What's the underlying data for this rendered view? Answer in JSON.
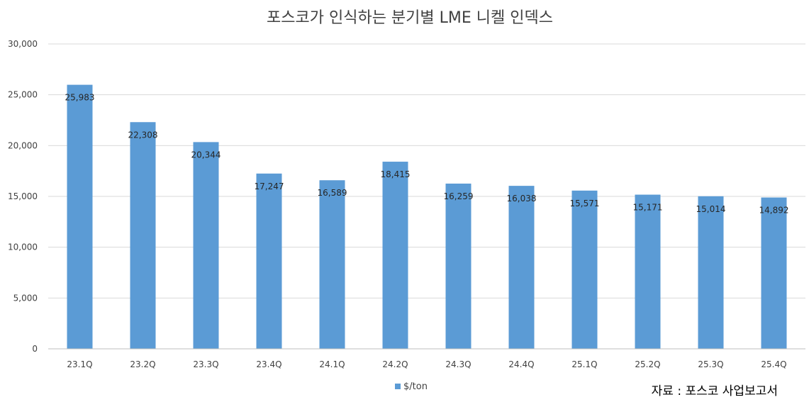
{
  "chart_data": {
    "type": "bar",
    "title": "포스코가 인식하는 분기별 LME 니켈 인덱스",
    "categories": [
      "23.1Q",
      "23.2Q",
      "23.3Q",
      "23.4Q",
      "24.1Q",
      "24.2Q",
      "24.3Q",
      "24.4Q",
      "25.1Q",
      "25.2Q",
      "25.3Q",
      "25.4Q"
    ],
    "series": [
      {
        "name": "$/ton",
        "values": [
          25983,
          22308,
          20344,
          17247,
          16589,
          18415,
          16259,
          16038,
          15571,
          15171,
          15014,
          14892
        ],
        "labels": [
          "25,983",
          "22,308",
          "20,344",
          "17,247",
          "16,589",
          "18,415",
          "16,259",
          "16,038",
          "15,571",
          "15,171",
          "15,014",
          "14,892"
        ],
        "color": "#5B9BD5"
      }
    ],
    "ylim": [
      0,
      30000
    ],
    "yticks": [
      0,
      5000,
      10000,
      15000,
      20000,
      25000,
      30000
    ],
    "ytick_labels": [
      "0",
      "5,000",
      "10,000",
      "15,000",
      "20,000",
      "25,000",
      "30,000"
    ],
    "grid": true,
    "legend_position": "bottom",
    "source_note": "자료 : 포스코 사업보고서"
  }
}
